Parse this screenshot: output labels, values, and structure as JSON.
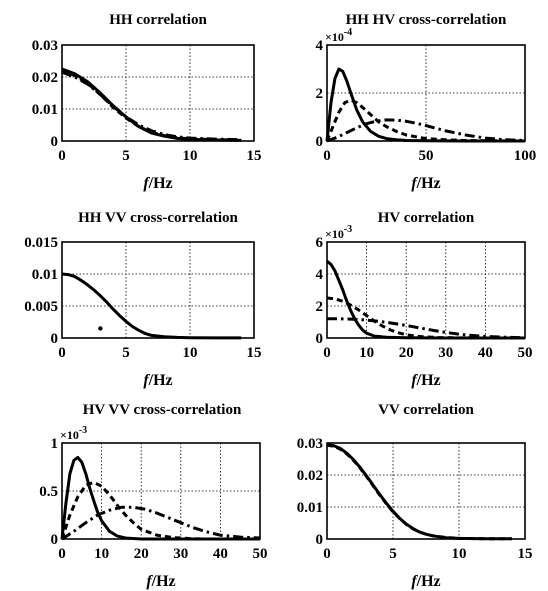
{
  "chart_data": [
    {
      "type": "line",
      "title": "HH correlation",
      "xlabel_var": "f",
      "xlabel_unit": "/Hz",
      "xlim": [
        0,
        15
      ],
      "ylim": [
        0,
        0.03
      ],
      "xticks": [
        0,
        5,
        10,
        15
      ],
      "yticks": [
        0,
        0.01,
        0.02,
        0.03
      ],
      "xtick_labels": [
        "0",
        "5",
        "10",
        "15"
      ],
      "ytick_labels": [
        "0",
        "0.01",
        "0.02",
        "0.03"
      ],
      "multiplier": "",
      "grid": "dotted",
      "series": [
        {
          "style": "solid",
          "x": [
            0,
            1,
            2,
            3,
            4,
            5,
            6,
            7,
            8,
            9,
            10,
            12,
            14
          ],
          "y": [
            0.0225,
            0.021,
            0.0185,
            0.015,
            0.011,
            0.0075,
            0.0045,
            0.0025,
            0.0015,
            0.0008,
            0.0005,
            0.0003,
            0.0002
          ]
        },
        {
          "style": "dashed",
          "x": [
            0,
            1,
            2,
            3,
            4,
            5,
            6,
            7,
            8,
            9,
            10,
            12,
            14
          ],
          "y": [
            0.022,
            0.0205,
            0.018,
            0.0145,
            0.0105,
            0.0072,
            0.0045,
            0.0027,
            0.0017,
            0.001,
            0.0007,
            0.0004,
            0.0003
          ]
        },
        {
          "style": "dashdot",
          "x": [
            0,
            1,
            2,
            3,
            4,
            5,
            6,
            7,
            8,
            9,
            10,
            12,
            14
          ],
          "y": [
            0.0215,
            0.02,
            0.0178,
            0.0145,
            0.0108,
            0.0076,
            0.005,
            0.0032,
            0.002,
            0.0013,
            0.0009,
            0.0006,
            0.0004
          ]
        }
      ]
    },
    {
      "type": "line",
      "title": "HH HV cross-correlation",
      "xlabel_var": "f",
      "xlabel_unit": "/Hz",
      "xlim": [
        0,
        100
      ],
      "ylim": [
        0,
        4
      ],
      "xticks": [
        0,
        50,
        100
      ],
      "yticks": [
        0,
        2,
        4
      ],
      "xtick_labels": [
        "0",
        "50",
        "100"
      ],
      "ytick_labels": [
        "0",
        "2",
        "4"
      ],
      "multiplier": "×10",
      "multiplier_exp": "-4",
      "grid": "dotted",
      "series": [
        {
          "style": "solid",
          "x": [
            0,
            2,
            4,
            6,
            8,
            10,
            12,
            15,
            18,
            22,
            26,
            30,
            35,
            40,
            50,
            70,
            100
          ],
          "y": [
            0,
            1.6,
            2.6,
            3.0,
            2.9,
            2.5,
            2.0,
            1.3,
            0.8,
            0.4,
            0.2,
            0.1,
            0.05,
            0.02,
            0.01,
            0,
            0
          ]
        },
        {
          "style": "dashed",
          "x": [
            0,
            3,
            6,
            9,
            12,
            15,
            18,
            22,
            26,
            30,
            35,
            40,
            50,
            60,
            70,
            85,
            100
          ],
          "y": [
            0,
            0.6,
            1.2,
            1.6,
            1.7,
            1.6,
            1.4,
            1.1,
            0.8,
            0.6,
            0.4,
            0.25,
            0.1,
            0.05,
            0.02,
            0.01,
            0
          ]
        },
        {
          "style": "dashdot",
          "x": [
            0,
            5,
            10,
            15,
            20,
            25,
            30,
            35,
            40,
            45,
            50,
            55,
            60,
            70,
            80,
            90,
            100
          ],
          "y": [
            0,
            0.15,
            0.35,
            0.55,
            0.72,
            0.83,
            0.88,
            0.87,
            0.82,
            0.74,
            0.64,
            0.53,
            0.42,
            0.25,
            0.12,
            0.05,
            0.02
          ]
        }
      ]
    },
    {
      "type": "line",
      "title": "HH VV cross-correlation",
      "xlabel_var": "f",
      "xlabel_unit": "/Hz",
      "xlim": [
        0,
        15
      ],
      "ylim": [
        0,
        0.015
      ],
      "xticks": [
        0,
        5,
        10,
        15
      ],
      "yticks": [
        0,
        0.005,
        0.01,
        0.015
      ],
      "xtick_labels": [
        "0",
        "5",
        "10",
        "15"
      ],
      "ytick_labels": [
        "0",
        "0.005",
        "0.01",
        "0.015"
      ],
      "multiplier": "",
      "grid": "dotted",
      "series": [
        {
          "style": "solid",
          "x": [
            0,
            0.5,
            1,
            1.5,
            2,
            2.5,
            3,
            3.5,
            4,
            4.5,
            5,
            5.5,
            6,
            6.5,
            7,
            8,
            9,
            10,
            12,
            14
          ],
          "y": [
            0.01,
            0.0099,
            0.0096,
            0.009,
            0.0083,
            0.0075,
            0.0066,
            0.0056,
            0.0045,
            0.0035,
            0.0026,
            0.0018,
            0.0012,
            0.0007,
            0.0004,
            0.0002,
            0.0001,
            5e-05,
            2e-05,
            1e-05
          ]
        }
      ],
      "points": [
        {
          "x": 3,
          "y": 0.0015
        }
      ]
    },
    {
      "type": "line",
      "title": "HV correlation",
      "xlabel_var": "f",
      "xlabel_unit": "/Hz",
      "xlim": [
        0,
        50
      ],
      "ylim": [
        0,
        6
      ],
      "xticks": [
        0,
        10,
        20,
        30,
        40,
        50
      ],
      "yticks": [
        0,
        2,
        4,
        6
      ],
      "xtick_labels": [
        "0",
        "10",
        "20",
        "30",
        "40",
        "50"
      ],
      "ytick_labels": [
        "0",
        "2",
        "4",
        "6"
      ],
      "multiplier": "×10",
      "multiplier_exp": "-3",
      "grid": "dotted",
      "series": [
        {
          "style": "solid",
          "x": [
            0,
            1,
            2,
            3,
            4,
            5,
            6,
            7,
            8,
            9,
            10,
            12,
            15,
            20,
            30,
            50
          ],
          "y": [
            4.8,
            4.6,
            4.2,
            3.6,
            3.0,
            2.3,
            1.7,
            1.2,
            0.8,
            0.5,
            0.3,
            0.12,
            0.05,
            0.02,
            0,
            0
          ]
        },
        {
          "style": "dashed",
          "x": [
            0,
            2,
            4,
            6,
            8,
            10,
            12,
            14,
            16,
            18,
            20,
            24,
            28,
            32,
            40,
            50
          ],
          "y": [
            2.5,
            2.45,
            2.3,
            2.05,
            1.75,
            1.4,
            1.05,
            0.75,
            0.5,
            0.33,
            0.2,
            0.08,
            0.03,
            0.01,
            0,
            0
          ]
        },
        {
          "style": "dashdot",
          "x": [
            0,
            3,
            6,
            9,
            12,
            15,
            18,
            21,
            24,
            27,
            30,
            33,
            36,
            40,
            45,
            50
          ],
          "y": [
            1.2,
            1.2,
            1.18,
            1.14,
            1.07,
            0.98,
            0.87,
            0.74,
            0.6,
            0.47,
            0.35,
            0.25,
            0.17,
            0.1,
            0.05,
            0.02
          ]
        }
      ]
    },
    {
      "type": "line",
      "title": "HV VV cross-correlation",
      "xlabel_var": "f",
      "xlabel_unit": "/Hz",
      "xlim": [
        0,
        50
      ],
      "ylim": [
        0,
        1
      ],
      "xticks": [
        0,
        10,
        20,
        30,
        40,
        50
      ],
      "yticks": [
        0,
        0.5,
        1
      ],
      "xtick_labels": [
        "0",
        "10",
        "20",
        "30",
        "40",
        "50"
      ],
      "ytick_labels": [
        "0",
        "0.5",
        "1"
      ],
      "multiplier": "×10",
      "multiplier_exp": "-3",
      "grid": "dotted",
      "series": [
        {
          "style": "solid",
          "x": [
            0,
            1,
            2,
            3,
            4,
            5,
            6,
            7,
            8,
            9,
            10,
            12,
            14,
            16,
            20,
            25,
            30,
            40,
            50
          ],
          "y": [
            0,
            0.38,
            0.68,
            0.82,
            0.85,
            0.8,
            0.68,
            0.53,
            0.4,
            0.28,
            0.19,
            0.08,
            0.03,
            0.01,
            0,
            0,
            0,
            0,
            0
          ]
        },
        {
          "style": "dashed",
          "x": [
            0,
            2,
            4,
            6,
            8,
            10,
            12,
            14,
            16,
            18,
            20,
            24,
            28,
            32,
            36,
            40,
            50
          ],
          "y": [
            0,
            0.25,
            0.44,
            0.56,
            0.59,
            0.55,
            0.46,
            0.35,
            0.25,
            0.17,
            0.1,
            0.04,
            0.015,
            0.005,
            0,
            0,
            0
          ]
        },
        {
          "style": "dashdot",
          "x": [
            0,
            3,
            6,
            9,
            12,
            15,
            18,
            21,
            24,
            27,
            30,
            33,
            36,
            40,
            45,
            50
          ],
          "y": [
            0,
            0.08,
            0.17,
            0.25,
            0.3,
            0.33,
            0.33,
            0.31,
            0.27,
            0.22,
            0.17,
            0.12,
            0.08,
            0.04,
            0.02,
            0.01
          ]
        }
      ]
    },
    {
      "type": "line",
      "title": "VV correlation",
      "xlabel_var": "f",
      "xlabel_unit": "/Hz",
      "xlim": [
        0,
        15
      ],
      "ylim": [
        0,
        0.03
      ],
      "xticks": [
        0,
        5,
        10,
        15
      ],
      "yticks": [
        0,
        0.01,
        0.02,
        0.03
      ],
      "xtick_labels": [
        "0",
        "5",
        "10",
        "15"
      ],
      "ytick_labels": [
        "0",
        "0.01",
        "0.02",
        "0.03"
      ],
      "multiplier": "",
      "grid": "dotted",
      "series": [
        {
          "style": "solid",
          "x": [
            0,
            0.5,
            1,
            1.5,
            2,
            2.5,
            3,
            3.5,
            4,
            4.5,
            5,
            5.5,
            6,
            6.5,
            7,
            7.5,
            8,
            9,
            10,
            12,
            14
          ],
          "y": [
            0.0295,
            0.0292,
            0.0283,
            0.0268,
            0.0248,
            0.0224,
            0.0197,
            0.0168,
            0.0139,
            0.0112,
            0.0087,
            0.0065,
            0.0047,
            0.0033,
            0.0022,
            0.0015,
            0.001,
            0.0004,
            0.0002,
            0.0001,
            5e-05
          ]
        },
        {
          "style": "dashed",
          "x": [
            0,
            0.5,
            1,
            1.5,
            2,
            2.5,
            3,
            3.5,
            4,
            4.5,
            5,
            5.5,
            6,
            6.5,
            7,
            7.5,
            8,
            9,
            10,
            12,
            14
          ],
          "y": [
            0.0293,
            0.029,
            0.0281,
            0.0266,
            0.0246,
            0.0222,
            0.0195,
            0.0166,
            0.0137,
            0.011,
            0.0085,
            0.0064,
            0.0046,
            0.0032,
            0.0022,
            0.0015,
            0.001,
            0.0005,
            0.0002,
            0.0001,
            5e-05
          ]
        }
      ]
    }
  ]
}
